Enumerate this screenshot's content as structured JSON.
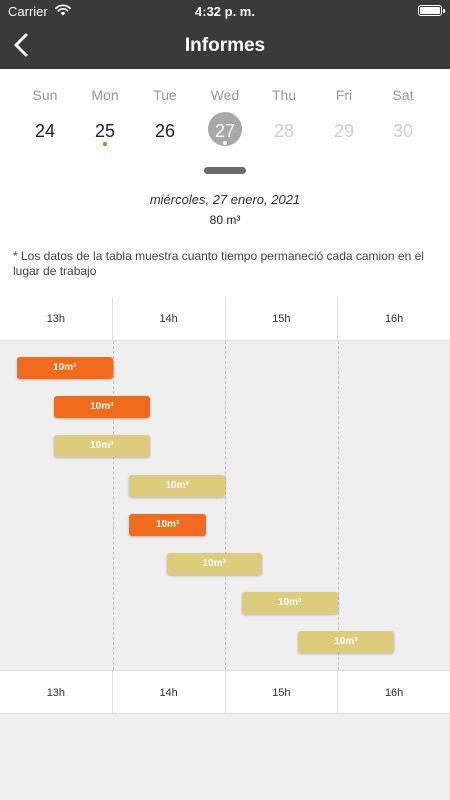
{
  "status_bar": {
    "carrier": "Carrier",
    "time": "4:32 p. m."
  },
  "nav": {
    "title": "Informes"
  },
  "week": {
    "days": [
      {
        "name": "Sun",
        "number": "24"
      },
      {
        "name": "Mon",
        "number": "25",
        "has_dot": true
      },
      {
        "name": "Tue",
        "number": "26"
      },
      {
        "name": "Wed",
        "number": "27",
        "selected": true
      },
      {
        "name": "Thu",
        "number": "28",
        "faded": true
      },
      {
        "name": "Fri",
        "number": "29",
        "faded": true
      },
      {
        "name": "Sat",
        "number": "30",
        "faded": true
      }
    ]
  },
  "report": {
    "date": "miércoles, 27 enero, 2021",
    "volume": "80 m³",
    "note": "*  Los datos de la tabla muestra cuanto tiempo permaneció cada camion en el lugar de trabajo"
  },
  "timeline": {
    "hours": [
      "13h",
      "14h",
      "15h",
      "16h"
    ],
    "start_hour": 13,
    "colors": {
      "active": "#f26a1b",
      "done": "#ddcc7c"
    },
    "entries": [
      {
        "label": "10m³",
        "start": 13.15,
        "end": 14.0,
        "status": "active"
      },
      {
        "label": "10m³",
        "start": 13.48,
        "end": 14.33,
        "status": "active"
      },
      {
        "label": "10m³",
        "start": 13.48,
        "end": 14.33,
        "status": "done"
      },
      {
        "label": "10m³",
        "start": 14.15,
        "end": 15.0,
        "status": "done"
      },
      {
        "label": "10m³",
        "start": 14.15,
        "end": 14.83,
        "status": "active"
      },
      {
        "label": "10m³",
        "start": 14.48,
        "end": 15.33,
        "status": "done"
      },
      {
        "label": "10m³",
        "start": 15.15,
        "end": 16.0,
        "status": "done"
      },
      {
        "label": "10m³",
        "start": 15.65,
        "end": 16.5,
        "status": "done"
      }
    ]
  }
}
